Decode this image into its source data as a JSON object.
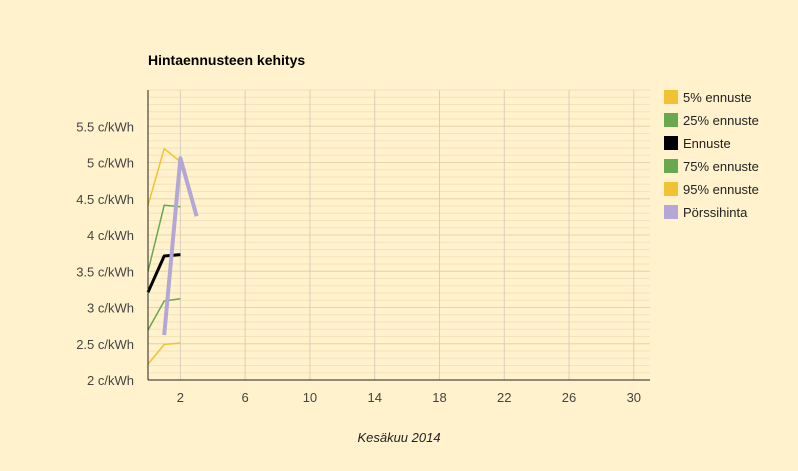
{
  "chart_data": {
    "type": "line",
    "title": "Hintaennusteen kehitys",
    "xlabel": "Kesäkuu 2014",
    "ylabel": "",
    "xlim": [
      0,
      31
    ],
    "ylim": [
      2,
      6
    ],
    "x_ticks": [
      2,
      6,
      10,
      14,
      18,
      22,
      26,
      30
    ],
    "y_ticks": [
      {
        "value": 2,
        "label": "2 c/kWh"
      },
      {
        "value": 2.5,
        "label": "2.5 c/kWh"
      },
      {
        "value": 3,
        "label": "3 c/kWh"
      },
      {
        "value": 3.5,
        "label": "3.5 c/kWh"
      },
      {
        "value": 4,
        "label": "4 c/kWh"
      },
      {
        "value": 4.5,
        "label": "4.5 c/kWh"
      },
      {
        "value": 5,
        "label": "5 c/kWh"
      },
      {
        "value": 5.5,
        "label": "5.5 c/kWh"
      }
    ],
    "grid": true,
    "legend_position": "right",
    "series": [
      {
        "name": "5% ennuste",
        "color": "#f1c232",
        "width": 1.5,
        "x": [
          0,
          1,
          2
        ],
        "values": [
          2.22,
          2.49,
          2.51
        ]
      },
      {
        "name": "25% ennuste",
        "color": "#6aa84f",
        "width": 1.5,
        "x": [
          0,
          1,
          2
        ],
        "values": [
          2.69,
          3.09,
          3.12
        ]
      },
      {
        "name": "Ennuste",
        "color": "#000000",
        "width": 3,
        "x": [
          0,
          1,
          2
        ],
        "values": [
          3.21,
          3.71,
          3.73
        ]
      },
      {
        "name": "75% ennuste",
        "color": "#6aa84f",
        "width": 1.5,
        "x": [
          0,
          1,
          2
        ],
        "values": [
          3.5,
          4.41,
          4.39
        ]
      },
      {
        "name": "95% ennuste",
        "color": "#f1c232",
        "width": 1.5,
        "x": [
          0,
          1,
          2
        ],
        "values": [
          4.41,
          5.19,
          5.01
        ]
      },
      {
        "name": "Pörssihinta",
        "color": "#b4a7d6",
        "width": 4,
        "x": [
          1,
          2,
          3
        ],
        "values": [
          2.62,
          5.06,
          4.26
        ]
      }
    ]
  }
}
